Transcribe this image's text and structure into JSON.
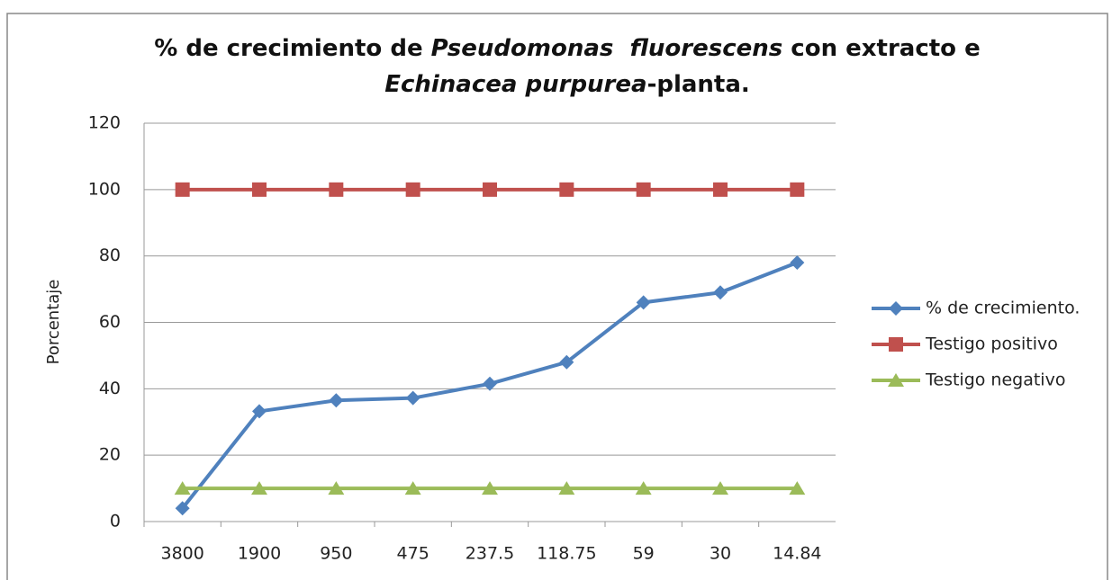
{
  "chart_data": {
    "type": "line",
    "title": [
      {
        "text": "% de crecimiento de ",
        "italic": false
      },
      {
        "text": "Pseudomonas  fluorescens",
        "italic": true
      },
      {
        "text": " con extracto e ",
        "italic": false
      },
      {
        "text": "Echinacea purpurea",
        "italic": true
      },
      {
        "text": "-planta.",
        "italic": false
      }
    ],
    "y_label": "Porcentaje",
    "categories": [
      "3800",
      "1900",
      "950",
      "475",
      "237.5",
      "118.75",
      "59",
      "30",
      "14.84"
    ],
    "series": [
      {
        "name": "% de crecimiento.",
        "color": "#4f81bd",
        "marker": "diamond",
        "values": [
          4,
          33.2,
          36.5,
          37.2,
          41.5,
          48,
          66,
          69,
          78
        ]
      },
      {
        "name": "Testigo positivo",
        "color": "#c0504d",
        "marker": "square",
        "values": [
          100,
          100,
          100,
          100,
          100,
          100,
          100,
          100,
          100
        ]
      },
      {
        "name": "Testigo negativo",
        "color": "#9bbb59",
        "marker": "triangle",
        "values": [
          10,
          10,
          10,
          10,
          10,
          10,
          10,
          10,
          10
        ]
      }
    ],
    "ylim": [
      0,
      120
    ],
    "yticks": [
      0,
      20,
      40,
      60,
      80,
      100,
      120
    ],
    "grid": true,
    "legend": "right"
  }
}
